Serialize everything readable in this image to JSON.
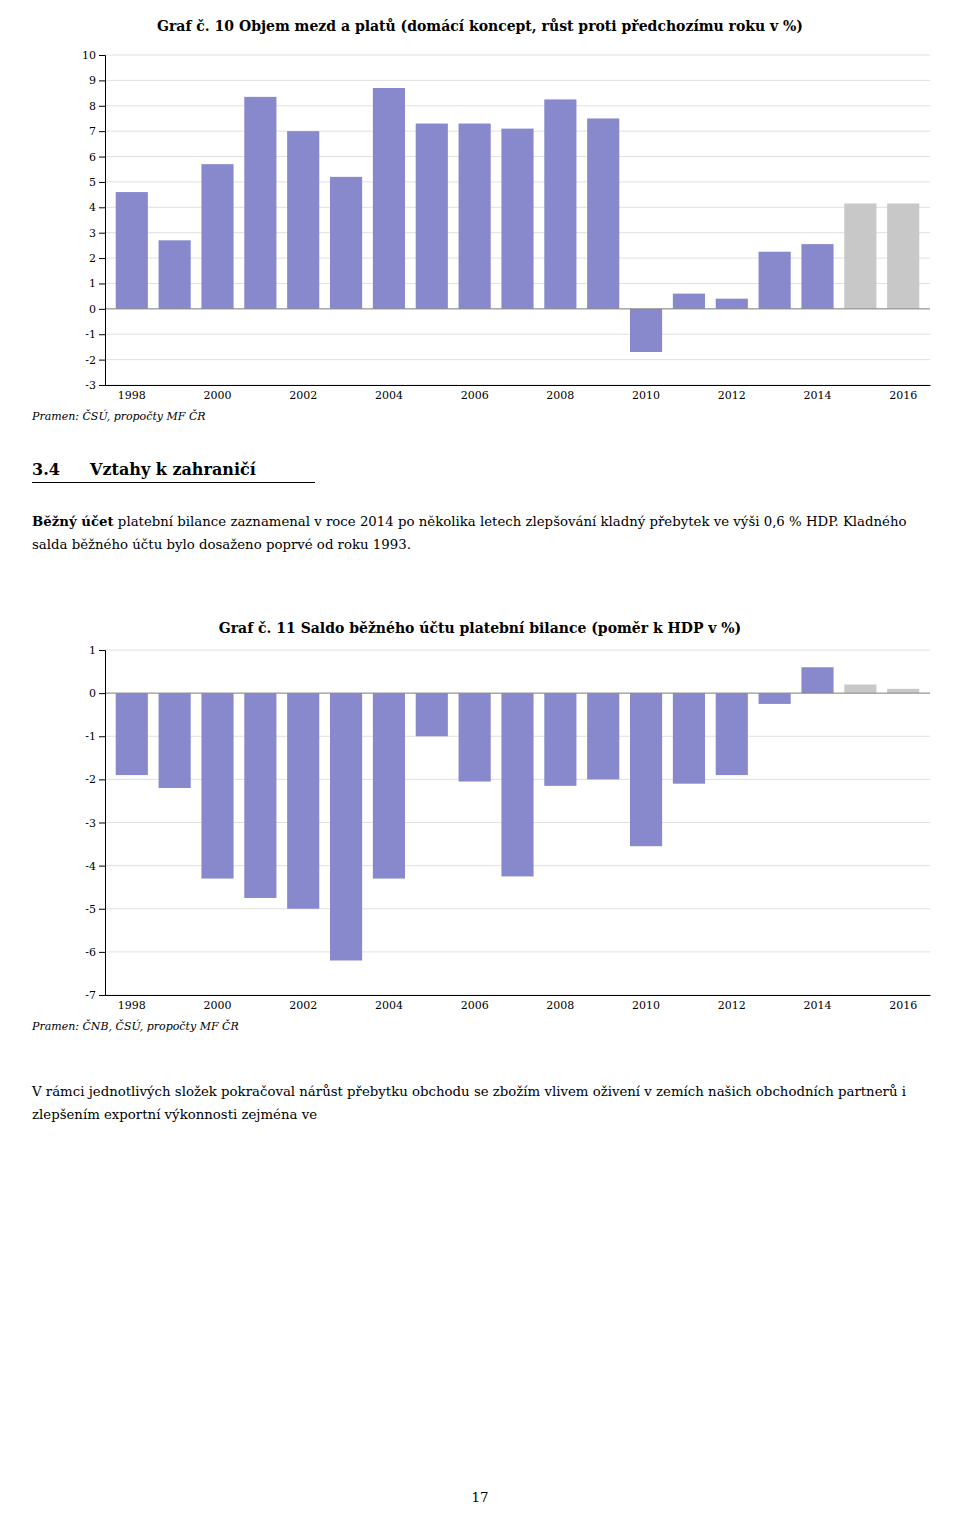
{
  "chart_data": [
    {
      "type": "bar",
      "title": "Graf č. 10 Objem mezd a platů (domácí koncept, růst proti předchozímu roku v %)",
      "categories": [
        "1998",
        null,
        "2000",
        null,
        "2002",
        null,
        "2004",
        null,
        "2006",
        null,
        "2008",
        null,
        "2010",
        null,
        "2012",
        null,
        "2014",
        null,
        "2016"
      ],
      "values": [
        4.6,
        2.7,
        5.7,
        8.35,
        7.0,
        5.2,
        8.7,
        7.3,
        7.3,
        7.1,
        8.25,
        7.5,
        -1.7,
        0.6,
        0.4,
        2.25,
        2.55,
        4.15,
        4.15
      ],
      "colors": [
        "#8888cc",
        "#8888cc",
        "#8888cc",
        "#8888cc",
        "#8888cc",
        "#8888cc",
        "#8888cc",
        "#8888cc",
        "#8888cc",
        "#8888cc",
        "#8888cc",
        "#8888cc",
        "#8888cc",
        "#8888cc",
        "#8888cc",
        "#8888cc",
        "#8888cc",
        "#c8c8c8",
        "#c8c8c8"
      ],
      "ylim": [
        -3,
        10
      ],
      "yticks": [
        -3,
        -2,
        -1,
        0,
        1,
        2,
        3,
        4,
        5,
        6,
        7,
        8,
        9,
        10
      ],
      "grid": true,
      "source": "Pramen: ČSÚ, propočty MF ČR"
    },
    {
      "type": "bar",
      "title": "Graf č. 11 Saldo běžného účtu platební bilance (poměr k HDP v %)",
      "categories": [
        "1998",
        null,
        "2000",
        null,
        "2002",
        null,
        "2004",
        null,
        "2006",
        null,
        "2008",
        null,
        "2010",
        null,
        "2012",
        null,
        "2014",
        null,
        "2016"
      ],
      "values": [
        -1.9,
        -2.2,
        -4.3,
        -4.75,
        -5.0,
        -6.2,
        -4.3,
        -1.0,
        -2.05,
        -4.25,
        -2.15,
        -2.0,
        -3.55,
        -2.1,
        -1.9,
        -0.25,
        0.6,
        0.2,
        0.1
      ],
      "colors": [
        "#8888cc",
        "#8888cc",
        "#8888cc",
        "#8888cc",
        "#8888cc",
        "#8888cc",
        "#8888cc",
        "#8888cc",
        "#8888cc",
        "#8888cc",
        "#8888cc",
        "#8888cc",
        "#8888cc",
        "#8888cc",
        "#8888cc",
        "#8888cc",
        "#8888cc",
        "#c8c8c8",
        "#c8c8c8"
      ],
      "ylim": [
        -7,
        1
      ],
      "yticks": [
        -7,
        -6,
        -5,
        -4,
        -3,
        -2,
        -1,
        0,
        1
      ],
      "grid": true,
      "source": "Pramen: ČNB, ČSÚ, propočty MF ČR"
    }
  ],
  "section_number": "3.4",
  "section_title": "Vztahy k zahraničí",
  "paragraphs": [
    {
      "bold": "Běžný účet",
      "text": " platební bilance zaznamenal v roce 2014 po několika letech zlepšování kladný přebytek ve výši 0,6 % HDP. Kladného salda běžného účtu bylo dosaženo poprvé od roku 1993."
    },
    {
      "text": "V rámci jednotlivých složek pokračoval nárůst přebytku obchodu se zbožím vlivem oživení v zemích našich obchodních partnerů i zlepšením exportní výkonnosti zejména ve"
    }
  ],
  "page_number": "17"
}
